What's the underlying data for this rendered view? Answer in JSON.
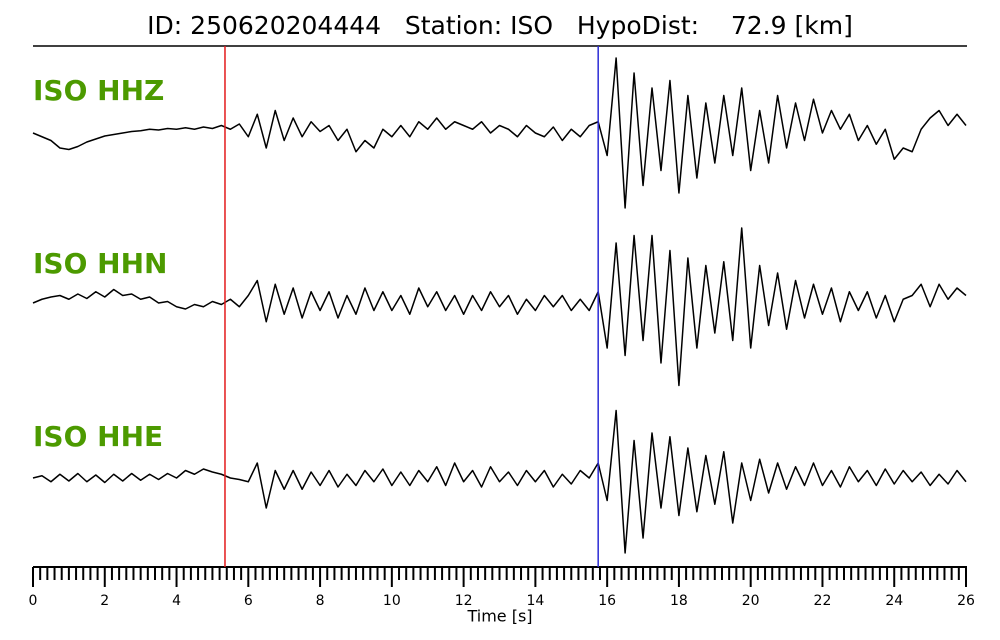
{
  "chart_data": {
    "type": "line",
    "title": "ID: 250620204444   Station: ISO   HypoDist:    72.9 [km]",
    "x_label": "Time [s]",
    "xlim": [
      0,
      26
    ],
    "xticks": [
      0,
      2,
      4,
      6,
      8,
      10,
      12,
      14,
      16,
      18,
      20,
      22,
      24,
      26
    ],
    "xminorticks": [
      0.2,
      0.4,
      0.6,
      0.8,
      1,
      1.2,
      1.4,
      1.6,
      1.8,
      2.2,
      2.4,
      2.6,
      2.8,
      3,
      3.2,
      3.4,
      3.6,
      3.8,
      4.2,
      4.4,
      4.6,
      4.8,
      5,
      5.2,
      5.4,
      5.6,
      5.8,
      6.2,
      6.4,
      6.6,
      6.8,
      7,
      7.2,
      7.4,
      7.6,
      7.8,
      8.2,
      8.4,
      8.6,
      8.8,
      9,
      9.2,
      9.4,
      9.6,
      9.8,
      10.2,
      10.4,
      10.6,
      10.8,
      11,
      11.2,
      11.4,
      11.6,
      11.8,
      12.2,
      12.4,
      12.6,
      12.8,
      13,
      13.2,
      13.4,
      13.6,
      13.8,
      14.2,
      14.4,
      14.6,
      14.8,
      15,
      15.2,
      15.4,
      15.6,
      15.8,
      16.2,
      16.4,
      16.6,
      16.8,
      17,
      17.2,
      17.4,
      17.6,
      17.8,
      18.2,
      18.4,
      18.6,
      18.8,
      19,
      19.2,
      19.4,
      19.6,
      19.8,
      20.2,
      20.4,
      20.6,
      20.8,
      21,
      21.2,
      21.4,
      21.6,
      21.8,
      22.2,
      22.4,
      22.6,
      22.8,
      23,
      23.2,
      23.4,
      23.6,
      23.8,
      24.2,
      24.4,
      24.6,
      24.8,
      25,
      25.2,
      25.4,
      25.6,
      25.8
    ],
    "markers": [
      {
        "x": 5.35,
        "color": "#e31a1c"
      },
      {
        "x": 15.75,
        "color": "#2b2bd6"
      }
    ],
    "x": [
      0,
      0.25,
      0.5,
      0.75,
      1,
      1.25,
      1.5,
      1.75,
      2,
      2.25,
      2.5,
      2.75,
      3,
      3.25,
      3.5,
      3.75,
      4,
      4.25,
      4.5,
      4.75,
      5,
      5.25,
      5.5,
      5.75,
      6,
      6.25,
      6.5,
      6.75,
      7,
      7.25,
      7.5,
      7.75,
      8,
      8.25,
      8.5,
      8.75,
      9,
      9.25,
      9.5,
      9.75,
      10,
      10.25,
      10.5,
      10.75,
      11,
      11.25,
      11.5,
      11.75,
      12,
      12.25,
      12.5,
      12.75,
      13,
      13.25,
      13.5,
      13.75,
      14,
      14.25,
      14.5,
      14.75,
      15,
      15.25,
      15.5,
      15.75,
      16,
      16.25,
      16.5,
      16.75,
      17,
      17.25,
      17.5,
      17.75,
      18,
      18.25,
      18.5,
      18.75,
      19,
      19.25,
      19.5,
      19.75,
      20,
      20.25,
      20.5,
      20.75,
      21,
      21.25,
      21.5,
      21.75,
      22,
      22.25,
      22.5,
      22.75,
      23,
      23.25,
      23.5,
      23.75,
      24,
      24.25,
      24.5,
      24.75,
      25,
      25.25,
      25.5,
      25.75,
      26
    ],
    "series": [
      {
        "name": "ISO HHZ",
        "color": "#000000",
        "values": [
          0,
          -0.05,
          -0.1,
          -0.2,
          -0.22,
          -0.18,
          -0.12,
          -0.08,
          -0.04,
          -0.02,
          0,
          0.02,
          0.03,
          0.05,
          0.04,
          0.06,
          0.05,
          0.07,
          0.05,
          0.08,
          0.06,
          0.1,
          0.05,
          0.12,
          -0.05,
          0.25,
          -0.2,
          0.3,
          -0.1,
          0.2,
          -0.05,
          0.15,
          0.02,
          0.1,
          -0.1,
          0.05,
          -0.25,
          -0.1,
          -0.2,
          0.05,
          -0.05,
          0.1,
          -0.05,
          0.15,
          0.05,
          0.2,
          0.05,
          0.15,
          0.1,
          0.05,
          0.15,
          0,
          0.1,
          0.05,
          -0.05,
          0.1,
          0,
          -0.05,
          0.08,
          -0.1,
          0.05,
          -0.05,
          0.1,
          0.15,
          -0.3,
          1.0,
          -1.0,
          0.8,
          -0.7,
          0.6,
          -0.5,
          0.7,
          -0.8,
          0.5,
          -0.6,
          0.4,
          -0.4,
          0.5,
          -0.3,
          0.6,
          -0.5,
          0.3,
          -0.4,
          0.5,
          -0.2,
          0.4,
          -0.1,
          0.45,
          0,
          0.3,
          0.05,
          0.25,
          -0.1,
          0.1,
          -0.15,
          0.05,
          -0.35,
          -0.2,
          -0.25,
          0.05,
          0.2,
          0.3,
          0.1,
          0.25,
          0.1
        ]
      },
      {
        "name": "ISO HHN",
        "color": "#000000",
        "values": [
          0,
          0.05,
          0.08,
          0.1,
          0.05,
          0.12,
          0.06,
          0.15,
          0.08,
          0.18,
          0.1,
          0.12,
          0.05,
          0.08,
          0,
          0.02,
          -0.05,
          -0.08,
          -0.02,
          -0.05,
          0.02,
          -0.02,
          0.05,
          -0.05,
          0.1,
          0.3,
          -0.25,
          0.25,
          -0.15,
          0.2,
          -0.2,
          0.15,
          -0.1,
          0.15,
          -0.2,
          0.1,
          -0.15,
          0.2,
          -0.1,
          0.15,
          -0.1,
          0.1,
          -0.15,
          0.2,
          -0.05,
          0.15,
          -0.1,
          0.1,
          -0.15,
          0.1,
          -0.1,
          0.15,
          -0.05,
          0.1,
          -0.15,
          0.05,
          -0.1,
          0.1,
          -0.05,
          0.1,
          -0.1,
          0.05,
          -0.1,
          0.15,
          -0.6,
          0.8,
          -0.7,
          0.9,
          -0.5,
          0.9,
          -0.8,
          0.7,
          -1.1,
          0.6,
          -0.6,
          0.5,
          -0.4,
          0.55,
          -0.5,
          1.0,
          -0.6,
          0.5,
          -0.3,
          0.4,
          -0.35,
          0.3,
          -0.2,
          0.25,
          -0.15,
          0.2,
          -0.25,
          0.15,
          -0.1,
          0.15,
          -0.2,
          0.1,
          -0.25,
          0.05,
          0.1,
          0.25,
          -0.05,
          0.25,
          0.05,
          0.2,
          0.1
        ]
      },
      {
        "name": "ISO HHE",
        "color": "#000000",
        "values": [
          0,
          0.03,
          -0.05,
          0.05,
          -0.04,
          0.06,
          -0.05,
          0.04,
          -0.06,
          0.05,
          -0.04,
          0.06,
          -0.03,
          0.05,
          -0.02,
          0.06,
          0,
          0.1,
          0.05,
          0.12,
          0.08,
          0.05,
          0,
          -0.02,
          -0.05,
          0.2,
          -0.4,
          0.1,
          -0.15,
          0.1,
          -0.15,
          0.08,
          -0.1,
          0.1,
          -0.12,
          0.05,
          -0.1,
          0.1,
          -0.05,
          0.12,
          -0.1,
          0.08,
          -0.1,
          0.1,
          -0.05,
          0.15,
          -0.1,
          0.2,
          -0.05,
          0.1,
          -0.12,
          0.15,
          -0.05,
          0.08,
          -0.1,
          0.1,
          -0.05,
          0.1,
          -0.12,
          0.05,
          -0.08,
          0.1,
          0,
          0.2,
          -0.3,
          0.9,
          -1.0,
          0.5,
          -0.8,
          0.6,
          -0.4,
          0.55,
          -0.5,
          0.4,
          -0.45,
          0.3,
          -0.35,
          0.35,
          -0.6,
          0.2,
          -0.3,
          0.25,
          -0.2,
          0.2,
          -0.15,
          0.15,
          -0.1,
          0.2,
          -0.1,
          0.1,
          -0.12,
          0.15,
          -0.05,
          0.1,
          -0.1,
          0.12,
          -0.08,
          0.1,
          -0.05,
          0.08,
          -0.1,
          0.05,
          -0.08,
          0.1,
          -0.05
        ]
      }
    ]
  }
}
